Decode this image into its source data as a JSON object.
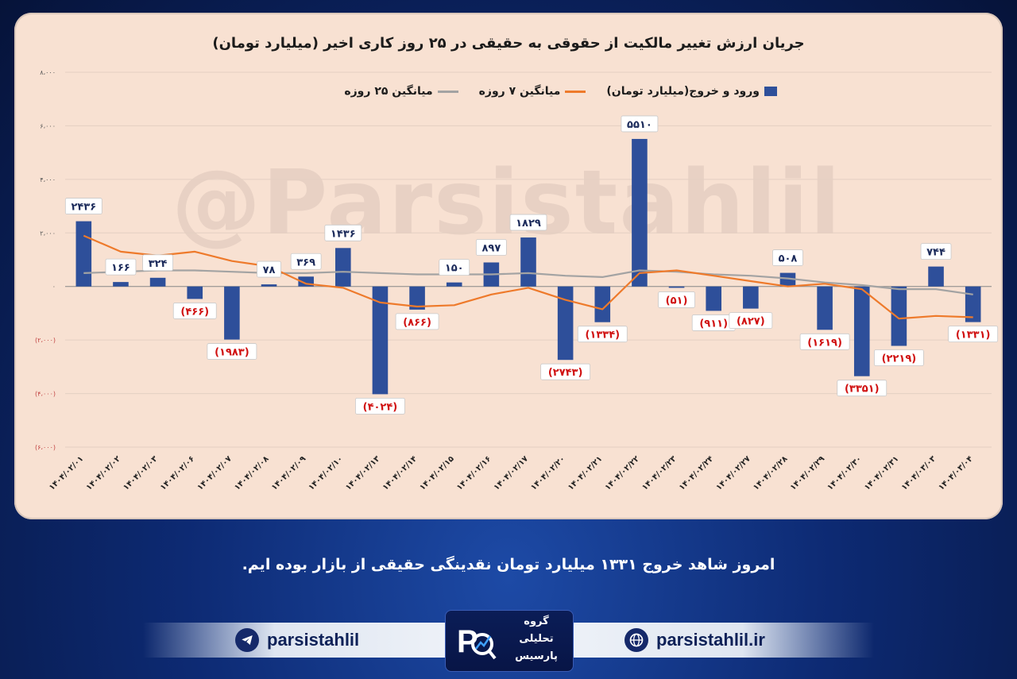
{
  "watermark": "@Parsistahlil",
  "colors": {
    "bar": "#2e4f9a",
    "ma7": "#ee7a2b",
    "ma25": "#a3a3a3",
    "negative_label": "#d01010",
    "panel": "#f8e1d2"
  },
  "chart_data": {
    "type": "bar",
    "title": "جریان ارزش تغییر مالکیت از حقوقی به حقیقی در ۲۵ روز کاری اخیر (میلیارد تومان)",
    "xlabel": "",
    "ylabel": "",
    "ylim": [
      -6000,
      8000
    ],
    "yticks": [
      8000,
      6000,
      4000,
      2000,
      0,
      -2000,
      -4000,
      -6000
    ],
    "ytick_labels": [
      "۸،۰۰۰",
      "۶،۰۰۰",
      "۴،۰۰۰",
      "۲،۰۰۰",
      "۰",
      "(۲،۰۰۰)",
      "(۴،۰۰۰)",
      "(۶،۰۰۰)"
    ],
    "grid": true,
    "legend_position": "top",
    "categories": [
      "۱۴۰۴/۰۲/۰۱",
      "۱۴۰۴/۰۲/۰۲",
      "۱۴۰۴/۰۲/۰۳",
      "۱۴۰۴/۰۲/۰۶",
      "۱۴۰۴/۰۲/۰۷",
      "۱۴۰۴/۰۲/۰۸",
      "۱۴۰۴/۰۲/۰۹",
      "۱۴۰۴/۰۲/۱۰",
      "۱۴۰۴/۰۲/۱۳",
      "۱۴۰۴/۰۲/۱۴",
      "۱۴۰۴/۰۲/۱۵",
      "۱۴۰۴/۰۲/۱۶",
      "۱۴۰۴/۰۲/۱۷",
      "۱۴۰۴/۰۲/۲۰",
      "۱۴۰۴/۰۲/۲۱",
      "۱۴۰۴/۰۲/۲۲",
      "۱۴۰۴/۰۲/۲۳",
      "۱۴۰۴/۰۲/۲۴",
      "۱۴۰۴/۰۲/۲۷",
      "۱۴۰۴/۰۲/۲۸",
      "۱۴۰۴/۰۲/۲۹",
      "۱۴۰۴/۰۲/۳۰",
      "۱۴۰۴/۰۲/۳۱",
      "۱۴۰۴/۰۳/۰۳",
      "۱۴۰۴/۰۳/۰۴"
    ],
    "series": [
      {
        "name": "ورود و خروج(میلیارد تومان)",
        "type": "bar",
        "values": [
          2436,
          166,
          324,
          -466,
          -1983,
          78,
          369,
          1436,
          -4024,
          -866,
          150,
          897,
          1829,
          -2743,
          -1334,
          5510,
          -51,
          -911,
          -827,
          508,
          -1619,
          -3351,
          -2219,
          744,
          -1331
        ],
        "labels": [
          "۲۴۳۶",
          "۱۶۶",
          "۳۲۴",
          "(۴۶۶)",
          "(۱۹۸۳)",
          "۷۸",
          "۳۶۹",
          "۱۴۳۶",
          "(۴۰۲۴)",
          "(۸۶۶)",
          "۱۵۰",
          "۸۹۷",
          "۱۸۲۹",
          "(۲۷۴۳)",
          "(۱۳۳۴)",
          "۵۵۱۰",
          "(۵۱)",
          "(۹۱۱)",
          "(۸۲۷)",
          "۵۰۸",
          "(۱۶۱۹)",
          "(۳۳۵۱)",
          "(۲۲۱۹)",
          "۷۴۴",
          "(۱۳۳۱)"
        ]
      },
      {
        "name": "میانگین ۷ روزه",
        "type": "line",
        "values": [
          1900,
          1300,
          1150,
          1300,
          950,
          750,
          100,
          -50,
          -600,
          -750,
          -700,
          -300,
          -50,
          -500,
          -850,
          500,
          600,
          400,
          200,
          0,
          100,
          -100,
          -1200,
          -1100,
          -1150
        ]
      },
      {
        "name": "میانگین ۲۵ روزه",
        "type": "line",
        "values": [
          500,
          550,
          600,
          600,
          550,
          500,
          500,
          550,
          500,
          450,
          450,
          450,
          500,
          400,
          350,
          600,
          550,
          450,
          400,
          300,
          150,
          50,
          -100,
          -100,
          -300
        ]
      }
    ]
  },
  "footer": {
    "caption": "امروز شاهد خروج ۱۳۳۱ میلیارد تومان نقدینگی حقیقی از بازار بوده ایم.",
    "telegram": "parsistahlil",
    "website": "parsistahlil.ir",
    "logo_lines": [
      "گروه",
      "تحلیلی",
      "پارسیس"
    ]
  }
}
